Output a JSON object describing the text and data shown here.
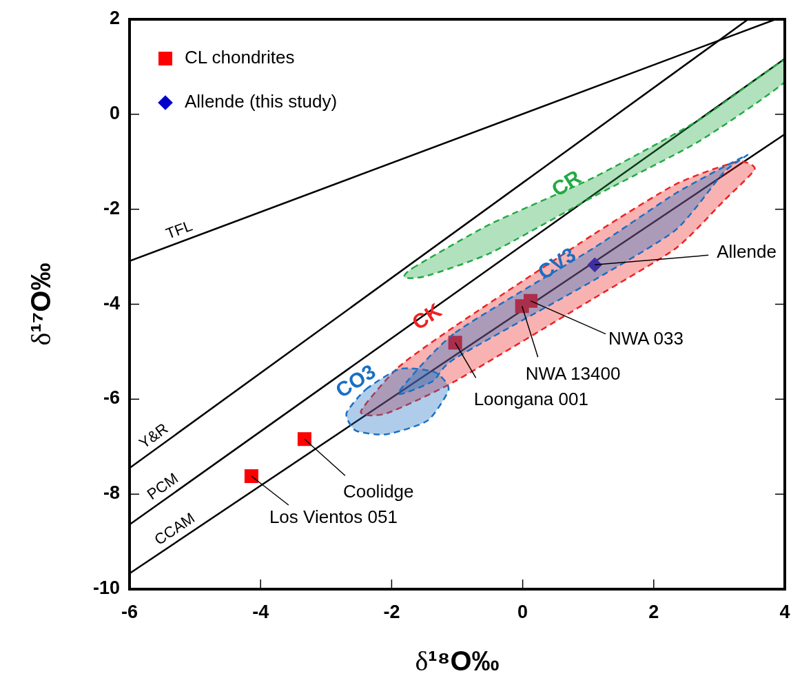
{
  "chart_data": {
    "type": "scatter",
    "xlabel": "δ¹⁸O‰",
    "ylabel": "δ¹⁷O‰",
    "xlim": [
      -6,
      4
    ],
    "ylim": [
      -10,
      2
    ],
    "xticks": [
      -6,
      -4,
      -2,
      0,
      2,
      4
    ],
    "yticks": [
      -10,
      -8,
      -6,
      -4,
      -2,
      0,
      2
    ],
    "grid": false,
    "legend": "top left",
    "series": [
      {
        "name": "TFL",
        "type": "line",
        "color": "#000000",
        "line_style": "solid",
        "marker": "none",
        "x": [
          -6,
          3.86
        ],
        "values": [
          -3.09,
          2
        ]
      },
      {
        "name": "Y&R",
        "type": "line",
        "color": "#000000",
        "line_style": "solid",
        "marker": "none",
        "x": [
          -6,
          3.44
        ],
        "values": [
          -7.45,
          2
        ]
      },
      {
        "name": "PCM",
        "type": "line",
        "color": "#000000",
        "line_style": "solid",
        "marker": "none",
        "x": [
          -6,
          4
        ],
        "values": [
          -8.64,
          1.17
        ]
      },
      {
        "name": "CCAM",
        "type": "line",
        "color": "#000000",
        "line_style": "solid",
        "marker": "none",
        "x": [
          -6,
          4
        ],
        "values": [
          -9.67,
          -0.42
        ]
      },
      {
        "name": "CL chondrites",
        "color": "#ff0000",
        "marker": "square",
        "x": [
          -4.14,
          -3.33,
          -1.03,
          -0.01,
          0.12
        ],
        "values": [
          -7.62,
          -6.84,
          -4.81,
          -4.04,
          -3.93
        ]
      },
      {
        "name": "Allende (this study)",
        "color": "#0000cc",
        "marker": "diamond",
        "x": [
          1.1
        ],
        "values": [
          -3.17
        ]
      },
      {
        "name": "CR",
        "type": "area",
        "color": "#22aa44",
        "line_style": "dashed",
        "marker": "none",
        "x": [
          -1.8,
          -1.68,
          -0.49,
          1.1,
          2.69,
          4,
          4,
          2.69,
          1.1,
          -0.49,
          -1.48,
          -1.8
        ],
        "values": [
          -3.44,
          -3.24,
          -2.31,
          -1.32,
          -0.12,
          1.15,
          0.68,
          -0.57,
          -1.72,
          -2.92,
          -3.41,
          -3.44
        ]
      },
      {
        "name": "CK",
        "type": "area",
        "color": "#ee2222",
        "line_style": "dashed",
        "marker": "none",
        "x": [
          -2.47,
          -1.9,
          -1.03,
          1.08,
          2.34,
          3.27,
          3.54,
          3.07,
          2.34,
          1.08,
          -1.03,
          -2.08,
          -2.47
        ],
        "values": [
          -6.26,
          -5.33,
          -4.46,
          -2.53,
          -1.47,
          -1,
          -1.16,
          -1.82,
          -2.82,
          -3.88,
          -5.62,
          -6.3,
          -6.26
        ]
      },
      {
        "name": "CV3",
        "type": "area",
        "color": "#1a6fc4",
        "line_style": "dashed",
        "marker": "none",
        "x": [
          -1.9,
          -1.03,
          1.08,
          2.34,
          3.42,
          3.07,
          2.34,
          1.08,
          -1.03,
          -1.37,
          -1.9
        ],
        "values": [
          -5.87,
          -4.6,
          -2.82,
          -1.66,
          -0.86,
          -1.22,
          -2.43,
          -3.5,
          -5.14,
          -5.62,
          -5.87
        ]
      },
      {
        "name": "CO3",
        "type": "area",
        "color": "#1a6fc4",
        "line_style": "dashed",
        "marker": "none",
        "x": [
          -2.69,
          -2.39,
          -1.87,
          -1.34,
          -1.13,
          -1.45,
          -2.08,
          -2.55,
          -2.69
        ],
        "values": [
          -6.3,
          -5.79,
          -5.36,
          -5.43,
          -5.79,
          -6.45,
          -6.74,
          -6.66,
          -6.3
        ]
      }
    ],
    "annotations": [
      {
        "text": "Allende",
        "x": 1.1,
        "y": -3.17
      },
      {
        "text": "NWA 033",
        "x": 0.12,
        "y": -3.93
      },
      {
        "text": "NWA 13400",
        "x": -0.01,
        "y": -4.04
      },
      {
        "text": "Loongana 001",
        "x": -1.03,
        "y": -4.81
      },
      {
        "text": "Coolidge",
        "x": -3.33,
        "y": -6.84
      },
      {
        "text": "Los Vientos 051",
        "x": -4.14,
        "y": -7.62
      }
    ]
  }
}
